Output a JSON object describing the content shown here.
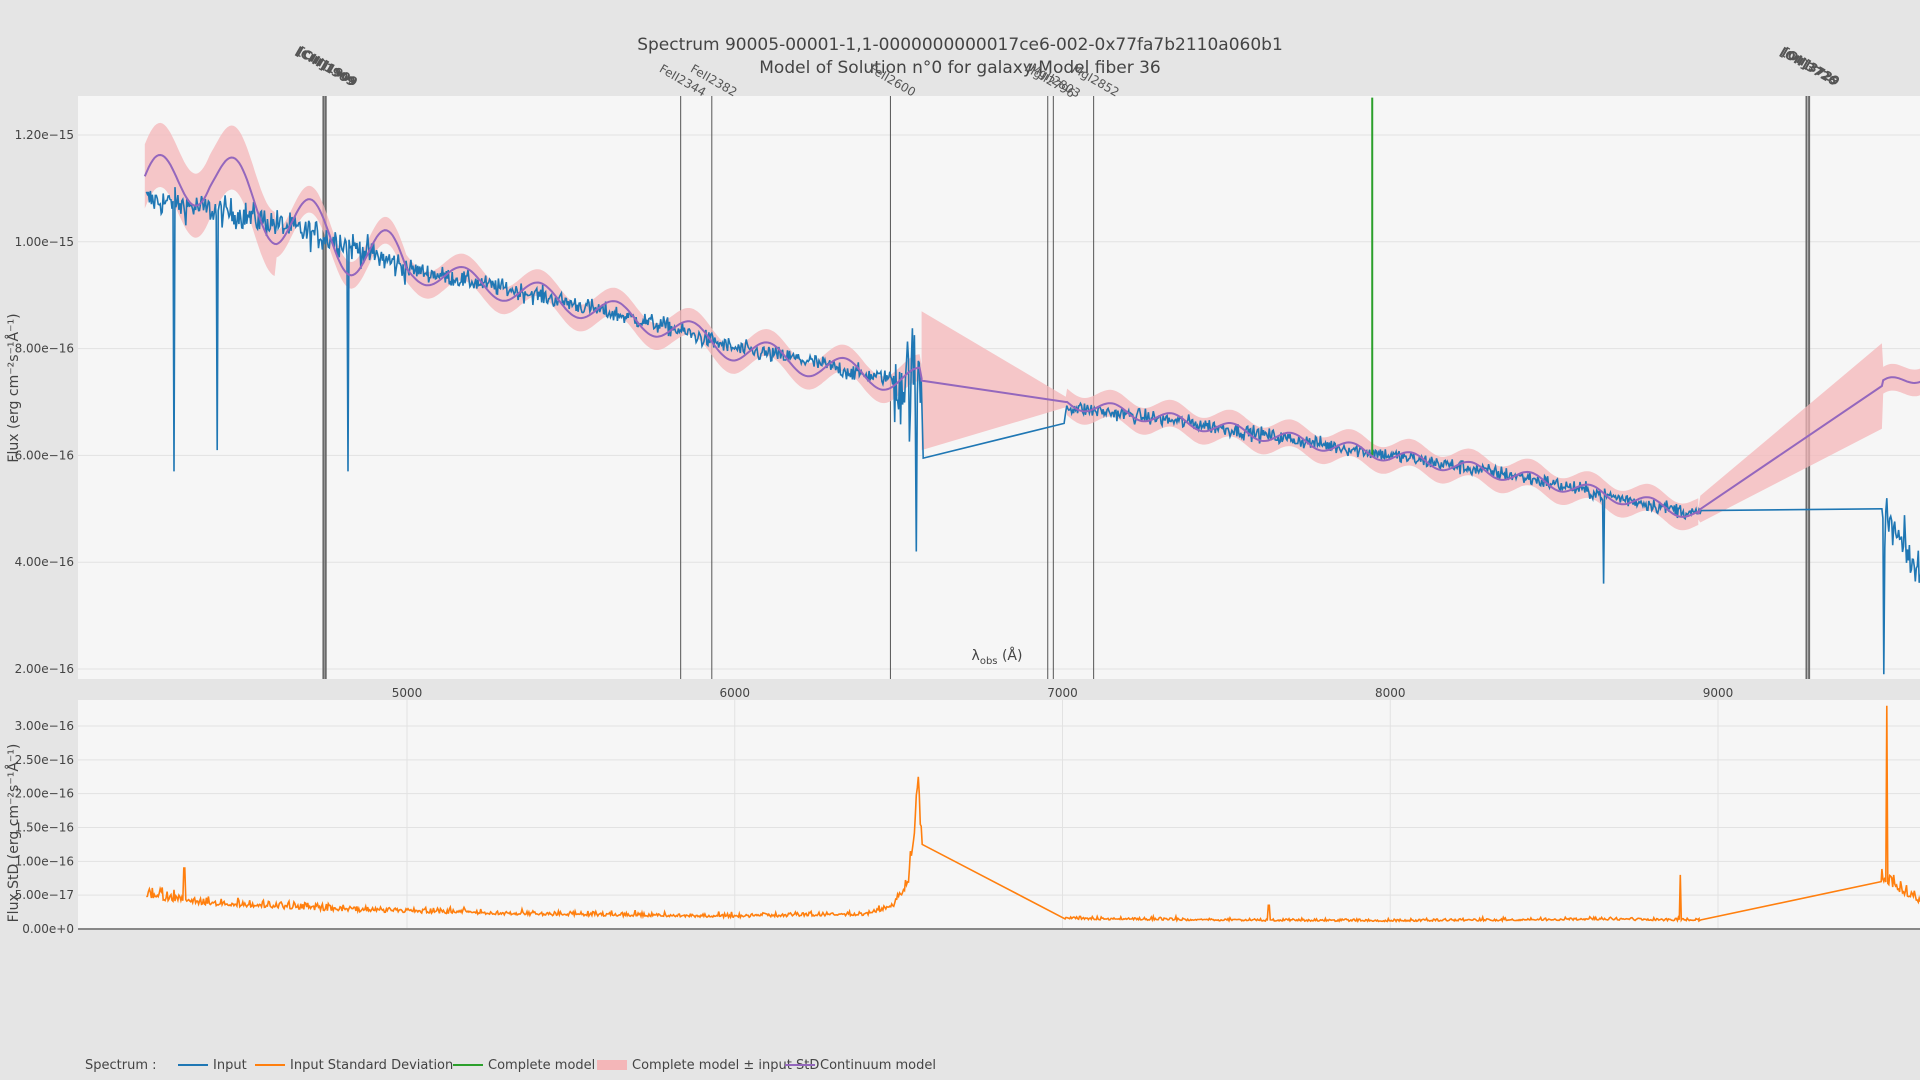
{
  "chart_data": [
    {
      "type": "line",
      "title": "Spectrum 90005-00001-1,1-0000000000017ce6-002-0x77fa7b2110a060b1",
      "subtitle": "Model of Solution n°0 for galaxy Model fiber 36",
      "xlabel": "λ",
      "xlabel_sub": "obs",
      "xlabel_unit": " (Å)",
      "ylabel": "Flux (erg cm⁻²s⁻¹Å⁻¹)",
      "xlim": [
        4200,
        9620
      ],
      "ylim": [
        1.85e-16,
        1.27e-15
      ],
      "grid": true,
      "x_ticks": [
        5000,
        6000,
        7000,
        8000,
        9000
      ],
      "x_tick_labels": [
        "5000",
        "6000",
        "7000",
        "8000",
        "9000"
      ],
      "y_ticks": [
        2e-16,
        4e-16,
        6e-16,
        8e-16,
        1e-15,
        1.2e-15
      ],
      "y_tick_labels": [
        "2.00e−16",
        "4.00e−16",
        "6.00e−16",
        "8.00e−16",
        "1.00e−15",
        "1.20e−15"
      ],
      "spectral_lines": [
        {
          "name": "[CIII]1909",
          "x": 4745,
          "bold": true
        },
        {
          "name": "[CIII]1909",
          "x": 4752,
          "bold": true
        },
        {
          "name": "FeII2344",
          "x": 5835,
          "bold": false
        },
        {
          "name": "FeII2382",
          "x": 5930,
          "bold": false
        },
        {
          "name": "FeII2600",
          "x": 6475,
          "bold": false
        },
        {
          "name": "MgII2796",
          "x": 6955,
          "bold": false
        },
        {
          "name": "MgII2803",
          "x": 6972,
          "bold": false
        },
        {
          "name": "MgI2852",
          "x": 7095,
          "bold": false
        },
        {
          "name": "[OII]3726",
          "x": 9270,
          "bold": true
        },
        {
          "name": "[OII]3729",
          "x": 9278,
          "bold": true
        }
      ],
      "gap_ranges": [
        [
          6570,
          7010
        ],
        [
          8950,
          9500
        ]
      ],
      "emission_spike": {
        "x": 7945,
        "peak": 1.27e-15
      },
      "series": [
        {
          "name": "Input",
          "color": "#1f77b4",
          "anchors": [
            [
              4200,
              1.08e-15
            ],
            [
              4500,
              1.05e-15
            ],
            [
              4800,
              1e-15
            ],
            [
              5000,
              9.5e-16
            ],
            [
              5400,
              9e-16
            ],
            [
              5800,
              8.4e-16
            ],
            [
              6000,
              8e-16
            ],
            [
              6200,
              7.8e-16
            ],
            [
              6400,
              7.5e-16
            ],
            [
              6560,
              7.4e-16
            ],
            [
              7020,
              6.9e-16
            ],
            [
              7400,
              6.6e-16
            ],
            [
              7800,
              6.2e-16
            ],
            [
              8000,
              6e-16
            ],
            [
              8400,
              5.6e-16
            ],
            [
              8700,
              5.2e-16
            ],
            [
              8940,
              4.9e-16
            ],
            [
              9500,
              4.95e-16
            ],
            [
              9620,
              3.7e-16
            ]
          ]
        },
        {
          "name": "Continuum model",
          "color": "#9467bd",
          "anchors": [
            [
              4200,
              1.1e-15
            ],
            [
              4400,
              1.13e-15
            ],
            [
              4600,
              1.05e-15
            ],
            [
              4800,
              1e-15
            ],
            [
              5000,
              9.5e-16
            ],
            [
              5400,
              9e-16
            ],
            [
              5800,
              8.4e-16
            ],
            [
              6000,
              8e-16
            ],
            [
              6400,
              7.5e-16
            ],
            [
              6570,
              7.4e-16
            ],
            [
              7010,
              7e-16
            ],
            [
              7400,
              6.6e-16
            ],
            [
              7800,
              6.2e-16
            ],
            [
              8000,
              6e-16
            ],
            [
              8400,
              5.6e-16
            ],
            [
              8940,
              4.9e-16
            ],
            [
              9500,
              7.3e-16
            ],
            [
              9620,
              7.5e-16
            ]
          ]
        },
        {
          "name": "Complete model ± input StD",
          "color": "#f4b6b8"
        }
      ]
    },
    {
      "type": "line",
      "ylabel": "Flux StD (erg cm⁻²s⁻¹Å⁻¹)",
      "xlim": [
        4200,
        9620
      ],
      "ylim": [
        0,
        3.35e-16
      ],
      "grid": true,
      "y_ticks": [
        0,
        5e-17,
        1e-16,
        1.5e-16,
        2e-16,
        2.5e-16,
        3e-16
      ],
      "y_tick_labels": [
        "0.00e+0",
        "5.00e−17",
        "1.00e−16",
        "1.50e−16",
        "2.00e−16",
        "2.50e−16",
        "3.00e−16"
      ],
      "series": [
        {
          "name": "Input Standard Deviation",
          "color": "#ff7f0e",
          "anchors": [
            [
              4200,
              4.5e-17
            ],
            [
              4400,
              3.5e-17
            ],
            [
              4800,
              2.6e-17
            ],
            [
              5400,
              2e-17
            ],
            [
              6000,
              1.7e-17
            ],
            [
              6400,
              2e-17
            ],
            [
              6480,
              3e-17
            ],
            [
              6530,
              6.5e-17
            ],
            [
              6560,
              1.9e-16
            ],
            [
              6570,
              1.25e-16
            ],
            [
              7010,
              1.4e-17
            ],
            [
              7500,
              1.2e-17
            ],
            [
              8000,
              1.1e-17
            ],
            [
              8600,
              1.3e-17
            ],
            [
              8940,
              1.2e-17
            ],
            [
              9500,
              7e-17
            ],
            [
              9620,
              3.5e-17
            ]
          ]
        }
      ]
    }
  ],
  "legend": {
    "title": "Spectrum :",
    "placement": "bottom-left",
    "items": [
      {
        "label": "Input",
        "color": "#1f77b4",
        "style": "line"
      },
      {
        "label": "Input Standard Deviation",
        "color": "#ff7f0e",
        "style": "line"
      },
      {
        "label": "Complete model",
        "color": "#2ca02c",
        "style": "line"
      },
      {
        "label": "Complete model ± input StD",
        "color": "#f4b6b8",
        "style": "band"
      },
      {
        "label": "Continuum model",
        "color": "#9467bd",
        "style": "line"
      }
    ]
  }
}
